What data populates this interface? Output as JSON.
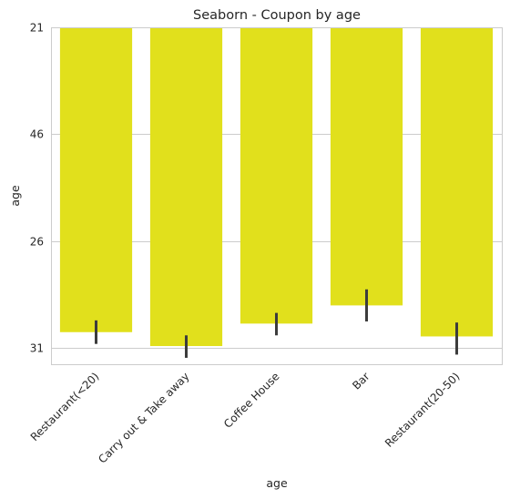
{
  "chart_data": {
    "type": "bar",
    "title": "Seaborn - Coupon by age",
    "xlabel": "age",
    "ylabel": "age",
    "categories": [
      "Restaurant(<20)",
      "Carry out & Take away",
      "Coffee House",
      "Bar",
      "Restaurant(20-50)"
    ],
    "values": [
      2.85,
      2.98,
      2.77,
      2.6,
      2.89
    ],
    "error_low": [
      2.74,
      2.88,
      2.67,
      2.45,
      2.76
    ],
    "error_high": [
      2.96,
      3.09,
      2.88,
      2.75,
      3.06
    ],
    "y_ticks": [
      0,
      1,
      2,
      3
    ],
    "y_tick_labels": [
      "21",
      "46",
      "26",
      "31"
    ],
    "ylim": [
      0,
      3.15
    ],
    "y_inverted": true,
    "bar_color": "#e1e01c",
    "errorbar_color": "#3c3c3c",
    "grid": "y",
    "style": "seaborn-whitegrid"
  }
}
